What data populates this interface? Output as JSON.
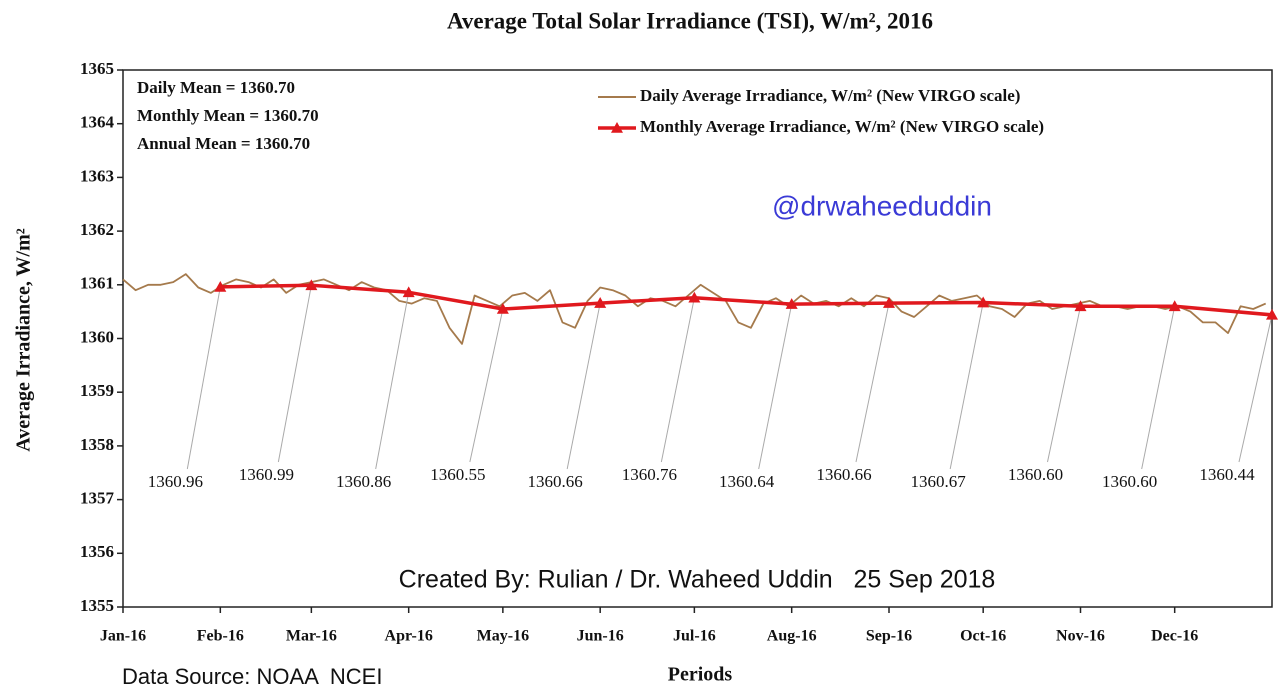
{
  "chart_data": {
    "type": "line",
    "title": "Average Total Solar Irradiance (TSI), W/m², 2016",
    "x_label": "Periods",
    "y_label": "Average Irradiance, W/m²",
    "xlim": [
      0,
      366
    ],
    "xticks": [
      {
        "value": 0,
        "label": "Jan-16"
      },
      {
        "value": 31,
        "label": "Feb-16"
      },
      {
        "value": 60,
        "label": "Mar-16"
      },
      {
        "value": 91,
        "label": "Apr-16"
      },
      {
        "value": 121,
        "label": "May-16"
      },
      {
        "value": 152,
        "label": "Jun-16"
      },
      {
        "value": 182,
        "label": "Jul-16"
      },
      {
        "value": 213,
        "label": "Aug-16"
      },
      {
        "value": 244,
        "label": "Sep-16"
      },
      {
        "value": 274,
        "label": "Oct-16"
      },
      {
        "value": 305,
        "label": "Nov-16"
      },
      {
        "value": 335,
        "label": "Dec-16"
      }
    ],
    "ylim": [
      1355,
      1365
    ],
    "yticks": [
      1355,
      1356,
      1357,
      1358,
      1359,
      1360,
      1361,
      1362,
      1363,
      1364,
      1365
    ],
    "grid": false,
    "legend": "top-right",
    "series": [
      {
        "name": "Daily Average Irradiance, W/m² (New VIRGO scale)",
        "color": "#a57a4c",
        "x": [
          0,
          4,
          8,
          12,
          16,
          20,
          24,
          28,
          32,
          36,
          40,
          44,
          48,
          52,
          56,
          60,
          64,
          68,
          72,
          76,
          80,
          84,
          88,
          92,
          96,
          100,
          104,
          108,
          112,
          116,
          120,
          124,
          128,
          132,
          136,
          140,
          144,
          148,
          152,
          156,
          160,
          164,
          168,
          172,
          176,
          180,
          184,
          188,
          192,
          196,
          200,
          204,
          208,
          212,
          216,
          220,
          224,
          228,
          232,
          236,
          240,
          244,
          248,
          252,
          256,
          260,
          264,
          268,
          272,
          276,
          280,
          284,
          288,
          292,
          296,
          300,
          304,
          308,
          312,
          316,
          320,
          324,
          328,
          332,
          336,
          340,
          344,
          348,
          352,
          356,
          360,
          364
        ],
        "values": [
          1361.1,
          1360.9,
          1361.0,
          1361.0,
          1361.05,
          1361.2,
          1360.95,
          1360.85,
          1361.0,
          1361.1,
          1361.05,
          1360.95,
          1361.1,
          1360.85,
          1361.0,
          1361.05,
          1361.1,
          1361.0,
          1360.9,
          1361.05,
          1360.95,
          1360.9,
          1360.7,
          1360.65,
          1360.75,
          1360.7,
          1360.2,
          1359.9,
          1360.8,
          1360.7,
          1360.6,
          1360.8,
          1360.85,
          1360.7,
          1360.9,
          1360.3,
          1360.2,
          1360.7,
          1360.95,
          1360.9,
          1360.8,
          1360.6,
          1360.75,
          1360.7,
          1360.6,
          1360.8,
          1361.0,
          1360.85,
          1360.7,
          1360.3,
          1360.2,
          1360.65,
          1360.75,
          1360.6,
          1360.8,
          1360.65,
          1360.7,
          1360.6,
          1360.75,
          1360.6,
          1360.8,
          1360.75,
          1360.5,
          1360.4,
          1360.6,
          1360.8,
          1360.7,
          1360.75,
          1360.8,
          1360.6,
          1360.55,
          1360.4,
          1360.65,
          1360.7,
          1360.55,
          1360.6,
          1360.65,
          1360.7,
          1360.6,
          1360.6,
          1360.55,
          1360.6,
          1360.6,
          1360.55,
          1360.6,
          1360.5,
          1360.3,
          1360.3,
          1360.1,
          1360.6,
          1360.55,
          1360.65
        ]
      },
      {
        "name": "Monthly Average Irradiance, W/m² (New VIRGO scale)",
        "color": "#e0191e",
        "x": [
          31,
          60,
          91,
          121,
          152,
          182,
          213,
          244,
          274,
          305,
          335,
          366
        ],
        "values": [
          1360.96,
          1360.99,
          1360.86,
          1360.55,
          1360.66,
          1360.76,
          1360.64,
          1360.66,
          1360.67,
          1360.6,
          1360.6,
          1360.44
        ],
        "value_labels": [
          "1360.96",
          "1360.99",
          "1360.86",
          "1360.55",
          "1360.66",
          "1360.76",
          "1360.64",
          "1360.66",
          "1360.67",
          "1360.60",
          "1360.60",
          "1360.44"
        ]
      }
    ],
    "annotations": [
      "Daily Mean = 1360.70",
      "Monthly Mean = 1360.70",
      "Annual Mean = 1360.70",
      "@drwaheeduddin",
      "Created By: Rulian / Dr. Waheed Uddin   25 Sep 2018",
      "Data Source: NOAA  NCEI"
    ]
  }
}
